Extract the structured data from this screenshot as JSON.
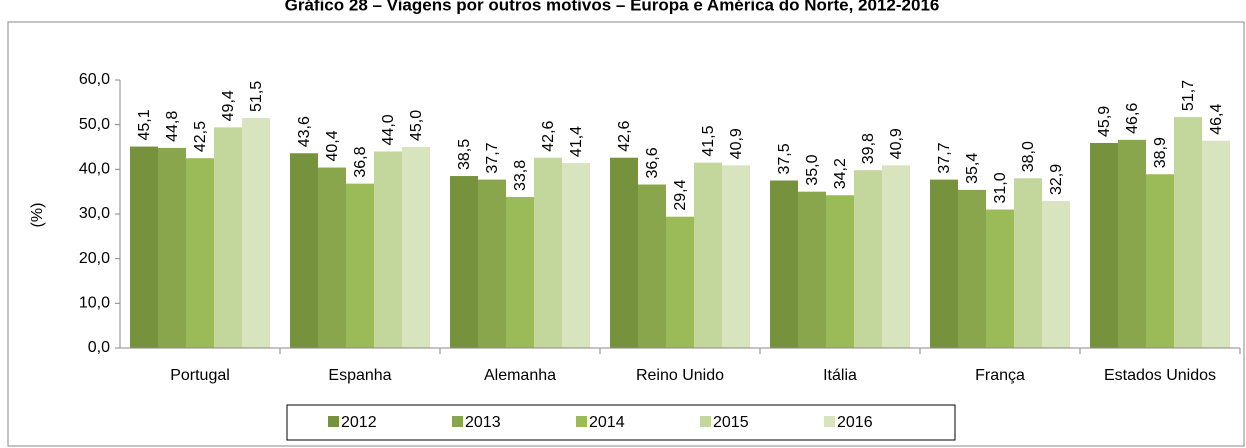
{
  "chart_data": {
    "type": "bar",
    "title": "Gráfico 28 – Viagens por outros motivos – Europa e América do Norte, 2012-2016",
    "y_label": "(%)",
    "categories": [
      "Portugal",
      "Espanha",
      "Alemanha",
      "Reino Unido",
      "Itália",
      "França",
      "Estados Unidos"
    ],
    "series": [
      {
        "name": "2012",
        "color": "#76923c",
        "values": [
          45.1,
          43.6,
          38.5,
          42.6,
          37.5,
          37.7,
          45.9
        ],
        "value_labels": [
          "45,1",
          "43,6",
          "38,5",
          "42,6",
          "37,5",
          "37,7",
          "45,9"
        ]
      },
      {
        "name": "2013",
        "color": "#8aa64c",
        "values": [
          44.8,
          40.4,
          37.7,
          36.6,
          35.0,
          35.4,
          46.6
        ],
        "value_labels": [
          "44,8",
          "40,4",
          "37,7",
          "36,6",
          "35,0",
          "35,4",
          "46,6"
        ]
      },
      {
        "name": "2014",
        "color": "#9bbb59",
        "values": [
          42.5,
          36.8,
          33.8,
          29.4,
          34.2,
          31.0,
          38.9
        ],
        "value_labels": [
          "42,5",
          "36,8",
          "33,8",
          "29,4",
          "34,2",
          "31,0",
          "38,9"
        ]
      },
      {
        "name": "2015",
        "color": "#c3d69b",
        "values": [
          49.4,
          44.0,
          42.6,
          41.5,
          39.8,
          38.0,
          51.7
        ],
        "value_labels": [
          "49,4",
          "44,0",
          "42,6",
          "41,5",
          "39,8",
          "38,0",
          "51,7"
        ]
      },
      {
        "name": "2016",
        "color": "#d7e4bd",
        "values": [
          51.5,
          45.0,
          41.4,
          40.9,
          40.9,
          32.9,
          46.4
        ],
        "value_labels": [
          "51,5",
          "45,0",
          "41,4",
          "40,9",
          "40,9",
          "32,9",
          "46,4"
        ]
      }
    ],
    "ylim": [
      0,
      60
    ],
    "yticks": [
      {
        "value": 0,
        "label": "0,0"
      },
      {
        "value": 10,
        "label": "10,0"
      },
      {
        "value": 20,
        "label": "20,0"
      },
      {
        "value": 30,
        "label": "30,0"
      },
      {
        "value": 40,
        "label": "40,0"
      },
      {
        "value": 50,
        "label": "50,0"
      },
      {
        "value": 60,
        "label": "60,0"
      }
    ],
    "legend": "bottom"
  }
}
